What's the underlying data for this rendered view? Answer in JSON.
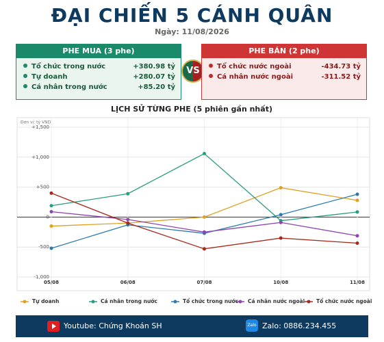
{
  "header": {
    "title": "ĐẠI CHIẾN 5 CÁNH QUÂN",
    "date": "Ngày: 11/08/2026"
  },
  "buy_panel": {
    "title": "PHE MUA  (3 phe)",
    "rows": [
      {
        "label": "Tổ chức trong nước",
        "value": "+380.98 tỷ"
      },
      {
        "label": "Tự doanh",
        "value": "+280.07 tỷ"
      },
      {
        "label": "Cá nhân trong nước",
        "value": "+85.20 tỷ"
      }
    ]
  },
  "vs": "VS",
  "sell_panel": {
    "title": "PHE BÁN  (2 phe)",
    "rows": [
      {
        "label": "Tổ chức nước ngoài",
        "value": "-434.73 tỷ"
      },
      {
        "label": "Cá nhân nước ngoài",
        "value": "-311.52 tỷ"
      }
    ]
  },
  "chart_data": {
    "type": "line",
    "title": "LỊCH SỬ TỪNG PHE (5 phiên gần nhất)",
    "unit_note": "Đơn vị: tỷ VND",
    "categories": [
      "05/08",
      "06/08",
      "07/08",
      "10/08",
      "11/08"
    ],
    "series": [
      {
        "name": "Tự doanh",
        "color": "#e0a020",
        "values": [
          -150,
          -100,
          0,
          490,
          280.07
        ]
      },
      {
        "name": "Cá nhân trong nước",
        "color": "#2a9d80",
        "values": [
          190,
          390,
          1060,
          -60,
          85.2
        ]
      },
      {
        "name": "Tổ chức trong nước",
        "color": "#2a7ab0",
        "values": [
          -520,
          -130,
          -270,
          40,
          380.98
        ]
      },
      {
        "name": "Cá nhân nước ngoài",
        "color": "#8e44ad",
        "values": [
          90,
          -40,
          -250,
          -90,
          -311.52
        ]
      },
      {
        "name": "Tổ chức nước ngoài",
        "color": "#a52a1a",
        "values": [
          400,
          -100,
          -530,
          -350,
          -434.73
        ]
      }
    ],
    "ylim": [
      -1000,
      1500
    ],
    "yticks": [
      {
        "value": 1500,
        "label": "+1,500"
      },
      {
        "value": 1000,
        "label": "+1,000"
      },
      {
        "value": 500,
        "label": "+500"
      },
      0,
      -500,
      {
        "value": -1000,
        "label": "-1,000"
      }
    ],
    "grid": true,
    "legend": "bottom"
  },
  "footer": {
    "youtube": "Youtube: Chứng Khoán SH",
    "zalo_icon": "Zalo",
    "zalo": "Zalo: 0886.234.455"
  }
}
